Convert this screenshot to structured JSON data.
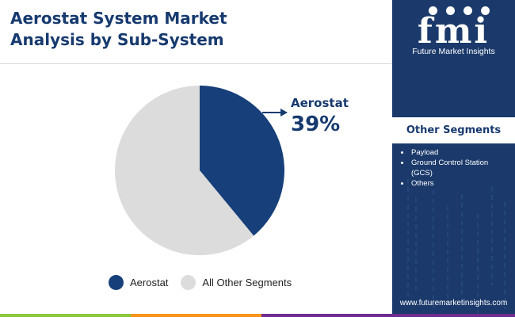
{
  "title_lines": [
    "Aerostat System Market",
    "Analysis by Sub-System"
  ],
  "chart_data": {
    "type": "pie",
    "categories": [
      "Aerostat",
      "All Other Segments"
    ],
    "values": [
      39,
      61
    ],
    "colors": [
      "#173f7a",
      "#dcdcdc"
    ],
    "start_angle_deg": 0,
    "direction": "clockwise",
    "callout": {
      "label": "Aerostat",
      "value": "39%"
    },
    "legend": {
      "placement": "bottom",
      "items": [
        {
          "label": "Aerostat",
          "color": "#173f7a"
        },
        {
          "label": "All Other Segments",
          "color": "#dcdcdc"
        }
      ]
    }
  },
  "sidebar": {
    "logo_mark": "fmi",
    "logo_sub": "Future Market Insights",
    "segments_heading": "Other Segments",
    "segments": [
      "Payload",
      "Ground Control Station (GCS)",
      "Others"
    ],
    "website": "www.futuremarketinsights.com"
  },
  "colors": {
    "brand_navy": "#1b3a6b",
    "title": "#173a6f",
    "bottom_bar": [
      "#8dc63f",
      "#f7941d",
      "#6f2c91"
    ]
  }
}
